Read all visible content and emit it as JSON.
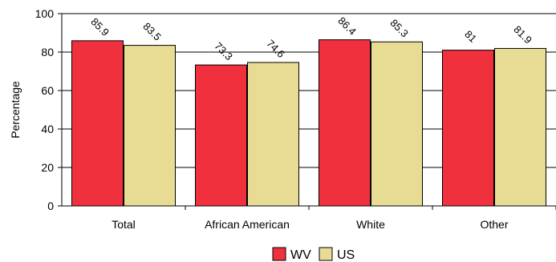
{
  "chart_data": {
    "type": "bar",
    "title": "",
    "xlabel": "",
    "ylabel": "Percentage",
    "ylim": [
      0,
      100
    ],
    "yticks": [
      0,
      20,
      40,
      60,
      80,
      100
    ],
    "grid": true,
    "legend_position": "bottom",
    "categories": [
      "Total",
      "African American",
      "White",
      "Other"
    ],
    "series": [
      {
        "name": "WV",
        "values": [
          85.9,
          73.3,
          86.4,
          81
        ],
        "labels": [
          "85.9",
          "73.3",
          "86.4",
          "81"
        ],
        "color": "#f0303c"
      },
      {
        "name": "US",
        "values": [
          83.5,
          74.6,
          85.3,
          81.9
        ],
        "labels": [
          "83.5",
          "74.6",
          "85.3",
          "81.9"
        ],
        "color": "#e8dc94"
      }
    ]
  }
}
